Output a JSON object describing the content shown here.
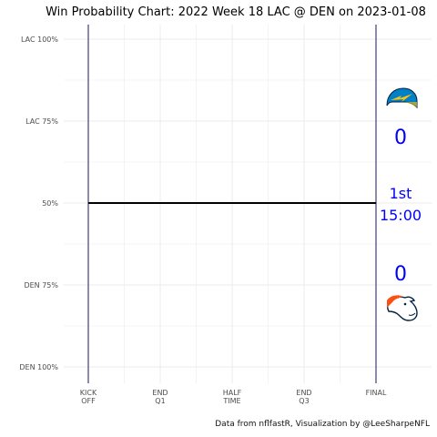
{
  "chart_data": {
    "type": "line",
    "title": "Win Probability Chart: 2022 Week 18 LAC @ DEN on 2023-01-08",
    "y_tick_labels": [
      "LAC 100%",
      "LAC 75%",
      "50%",
      "DEN 75%",
      "DEN 100%"
    ],
    "y_tick_values": [
      100,
      75,
      50,
      25,
      0
    ],
    "x_tick_labels": [
      [
        "KICK",
        "OFF"
      ],
      [
        "END",
        "Q1"
      ],
      [
        "HALF",
        "TIME"
      ],
      [
        "END",
        "Q3"
      ],
      [
        "FINAL"
      ]
    ],
    "x_tick_values": [
      0,
      900,
      1800,
      2700,
      3600
    ],
    "xlim": [
      0,
      3600
    ],
    "ylim": [
      0,
      100
    ],
    "grid": true,
    "series": [
      {
        "values": [
          {
            "x": 0,
            "y": 50
          },
          {
            "x": 3600,
            "y": 50
          }
        ],
        "color": "#000000"
      }
    ],
    "vertical_lines": [
      0,
      3600
    ],
    "home_team": "DEN",
    "away_team": "LAC",
    "score_away": "0",
    "score_home": "0",
    "quarter": "1st",
    "clock": "15:00",
    "credit": "Data from nflfastR, Visualization by @LeeSharpeNFL"
  },
  "colors": {
    "score_text": "#0000ff",
    "grid": "#ebebeb",
    "vline": "#1a1a4d",
    "wp_line": "#000000",
    "chargers_navy": "#0080c6",
    "chargers_gold": "#ffc20e",
    "broncos_orange": "#fb4f14",
    "broncos_navy": "#002244"
  },
  "icons": {
    "away_logo": "chargers-logo-icon",
    "home_logo": "broncos-logo-icon"
  }
}
